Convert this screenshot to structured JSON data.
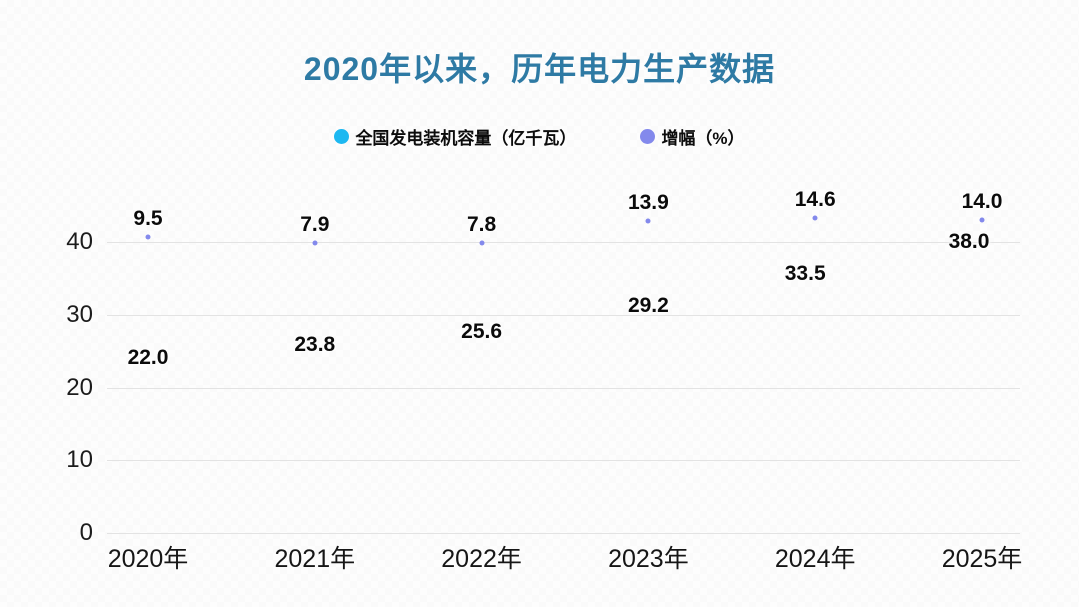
{
  "chart_data": {
    "type": "scatter",
    "title": "2020年以来，历年电力生产数据",
    "categories": [
      "2020年",
      "2021年",
      "2022年",
      "2023年",
      "2024年",
      "2025年"
    ],
    "series": [
      {
        "name": "全国发电装机容量（亿千瓦）",
        "color": "#1db8f1",
        "axis": "left",
        "marker": "hidden",
        "values": [
          22.0,
          23.8,
          25.6,
          29.2,
          33.5,
          38.0
        ]
      },
      {
        "name": "增幅（%）",
        "color": "#8389ec",
        "axis": "right",
        "marker": "dot",
        "values": [
          9.5,
          7.9,
          7.8,
          13.9,
          14.6,
          14.0
        ]
      }
    ],
    "y_ticks": [
      0,
      10,
      20,
      30,
      40
    ],
    "ylim": [
      0,
      44.5
    ],
    "grid": true,
    "legend_position": "top",
    "title_color": "#2e7aa4",
    "label_decimals": 1
  }
}
